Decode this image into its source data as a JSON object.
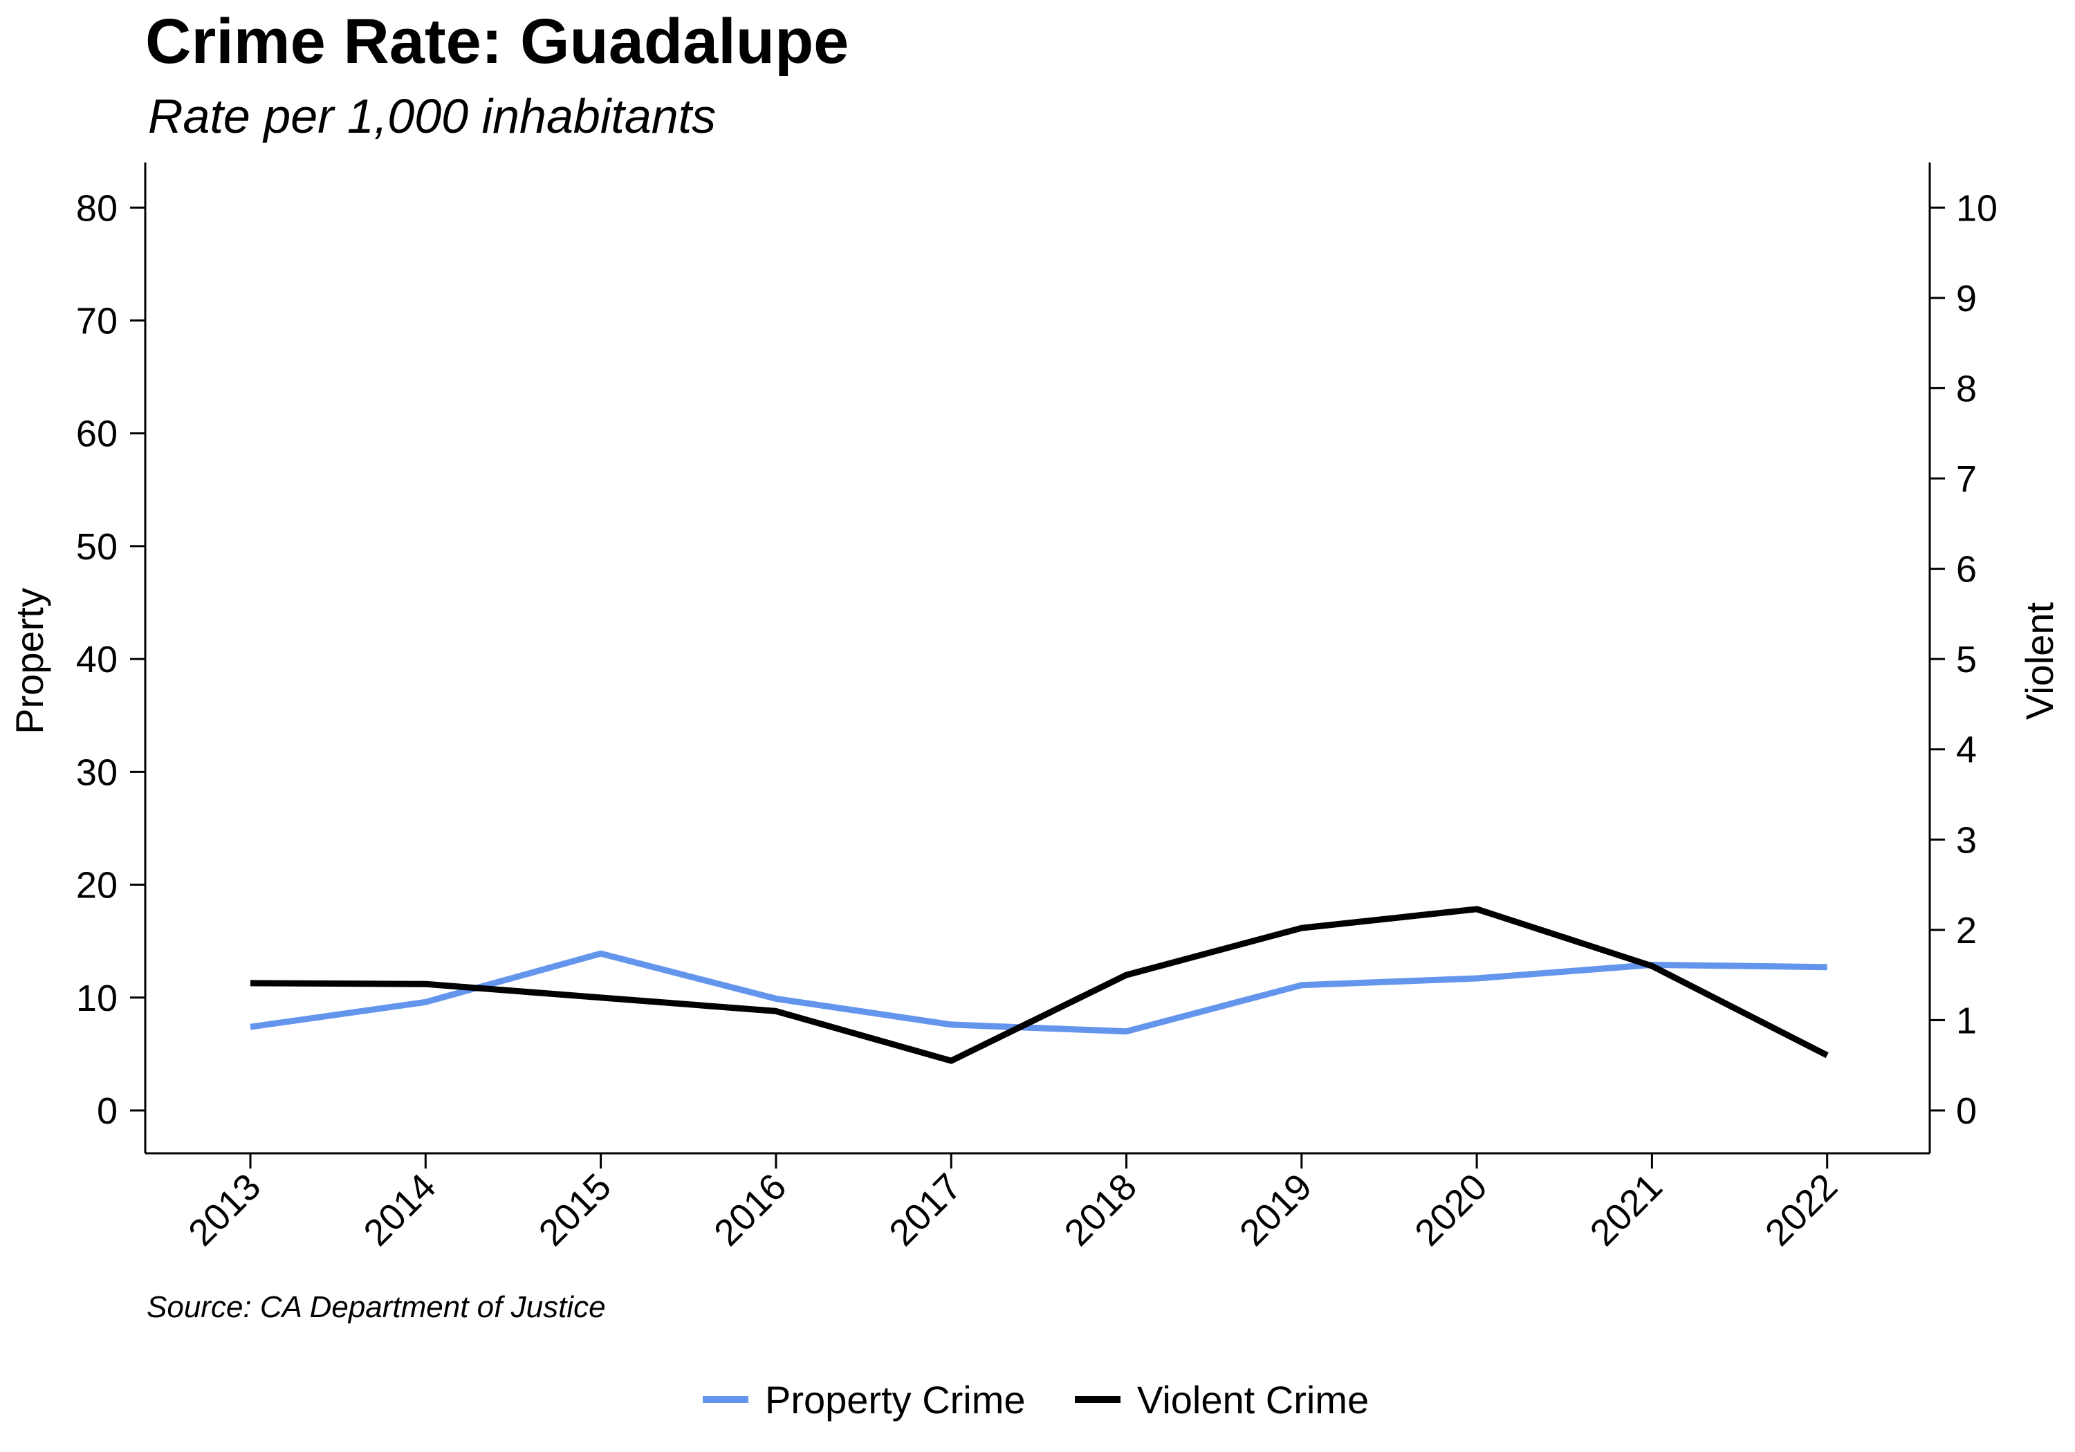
{
  "chart_data": {
    "type": "line",
    "title": "Crime Rate: Guadalupe",
    "subtitle": "Rate per 1,000 inhabitants",
    "categories": [
      "2013",
      "2014",
      "2015",
      "2016",
      "2017",
      "2018",
      "2019",
      "2020",
      "2021",
      "2022"
    ],
    "series": [
      {
        "name": "Property Crime",
        "axis": "left",
        "color": "#6495ED",
        "values": [
          7.4,
          9.6,
          13.9,
          9.9,
          7.6,
          7.0,
          11.1,
          11.7,
          12.9,
          12.7
        ]
      },
      {
        "name": "Violent Crime",
        "axis": "right",
        "color": "#000000",
        "values": [
          1.41,
          1.4,
          1.25,
          1.1,
          0.55,
          1.5,
          2.02,
          2.23,
          1.6,
          0.61
        ]
      }
    ],
    "y_left": {
      "label": "Property",
      "ticks": [
        0,
        10,
        20,
        30,
        40,
        50,
        60,
        70,
        80
      ],
      "range": [
        -3.8,
        84
      ]
    },
    "y_right": {
      "label": "Violent",
      "ticks": [
        0,
        1,
        2,
        3,
        4,
        5,
        6,
        7,
        8,
        9,
        10
      ],
      "range": [
        -0.475,
        10.5
      ]
    },
    "source": "Source: CA Department of Justice",
    "legend_position": "bottom",
    "grid": false
  }
}
